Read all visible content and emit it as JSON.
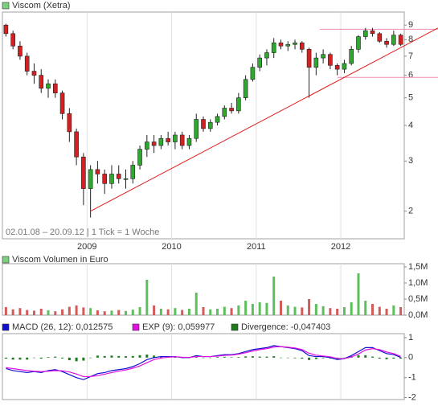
{
  "chart_data": [
    {
      "type": "candlestick",
      "title": "Viscom (Xetra)",
      "legend_color": "#7ccf7c",
      "caption": "02.01.08 – 20.09.12 | 1 Tick = 1 Woche",
      "categories": [
        null,
        null,
        null,
        null,
        null,
        null,
        null,
        null,
        null,
        null,
        null,
        null,
        "2009",
        null,
        null,
        null,
        null,
        null,
        null,
        null,
        null,
        null,
        null,
        null,
        "2010",
        null,
        null,
        null,
        null,
        null,
        null,
        null,
        null,
        null,
        null,
        null,
        "2011",
        null,
        null,
        null,
        null,
        null,
        null,
        null,
        null,
        null,
        null,
        null,
        "2012",
        null,
        null,
        null,
        null,
        null,
        null,
        null,
        null
      ],
      "open": [
        9.0,
        8.4,
        7.6,
        7.0,
        6.2,
        6.0,
        5.4,
        5.6,
        5.2,
        4.4,
        3.8,
        3.1,
        2.4,
        2.8,
        2.7,
        2.5,
        2.7,
        2.6,
        2.6,
        2.9,
        3.3,
        3.5,
        3.4,
        3.6,
        3.5,
        3.7,
        3.4,
        3.6,
        4.2,
        3.9,
        4.1,
        4.3,
        4.6,
        4.5,
        5.0,
        5.8,
        6.4,
        6.9,
        7.2,
        7.8,
        7.6,
        7.7,
        7.8,
        7.4,
        6.4,
        6.9,
        7.1,
        6.5,
        6.3,
        6.6,
        7.4,
        8.2,
        8.6,
        8.4,
        7.9,
        7.7,
        8.3
      ],
      "high": [
        9.1,
        8.6,
        7.9,
        7.2,
        6.6,
        6.3,
        5.8,
        5.8,
        5.3,
        4.6,
        3.9,
        3.2,
        2.9,
        3.0,
        2.8,
        2.9,
        2.9,
        2.8,
        3.0,
        3.4,
        3.7,
        3.7,
        3.7,
        3.8,
        3.8,
        3.8,
        3.7,
        4.4,
        4.3,
        4.2,
        4.4,
        4.7,
        4.8,
        5.2,
        6.0,
        6.6,
        7.1,
        7.4,
        8.1,
        8.0,
        7.9,
        8.0,
        7.9,
        7.5,
        7.2,
        7.4,
        7.2,
        6.6,
        6.8,
        7.6,
        8.3,
        8.8,
        8.8,
        8.5,
        8.1,
        8.6,
        8.4
      ],
      "low": [
        8.2,
        7.4,
        6.8,
        6.0,
        5.6,
        5.2,
        5.0,
        5.0,
        4.2,
        3.5,
        2.9,
        2.1,
        1.9,
        2.5,
        2.3,
        2.4,
        2.5,
        2.4,
        2.5,
        2.8,
        3.1,
        3.2,
        3.3,
        3.4,
        3.3,
        3.3,
        3.3,
        3.5,
        3.8,
        3.8,
        4.0,
        4.2,
        4.4,
        4.4,
        4.9,
        5.7,
        6.2,
        6.5,
        6.9,
        7.4,
        7.3,
        7.4,
        7.2,
        5.0,
        6.0,
        6.6,
        6.3,
        6.0,
        6.1,
        6.5,
        7.2,
        8.0,
        8.2,
        7.8,
        7.5,
        7.6,
        7.6
      ],
      "close": [
        8.4,
        7.6,
        7.0,
        6.2,
        6.0,
        5.4,
        5.6,
        5.2,
        4.4,
        3.8,
        3.1,
        2.4,
        2.8,
        2.7,
        2.5,
        2.7,
        2.6,
        2.6,
        2.9,
        3.3,
        3.5,
        3.4,
        3.6,
        3.5,
        3.7,
        3.4,
        3.6,
        4.2,
        3.9,
        4.1,
        4.3,
        4.6,
        4.5,
        5.0,
        5.8,
        6.4,
        6.9,
        7.2,
        7.8,
        7.6,
        7.7,
        7.8,
        7.4,
        6.4,
        6.9,
        7.1,
        6.5,
        6.3,
        6.6,
        7.4,
        8.2,
        8.6,
        8.4,
        7.9,
        7.7,
        8.3,
        7.7
      ],
      "up_color": "#2ea82e",
      "down_color": "#d42020",
      "ylim": [
        1.6,
        10
      ],
      "yticks": [
        2,
        3,
        4,
        5,
        6,
        7,
        8,
        9
      ],
      "log_scale": true,
      "grid": true,
      "trendline": {
        "color": "#e02020",
        "points": [
          [
            12,
            2.0
          ],
          [
            56,
            7.5
          ]
        ]
      },
      "levels": [
        {
          "value": 8.7,
          "color": "#f08cb4"
        },
        {
          "value": 5.9,
          "color": "#f08cb4"
        }
      ]
    },
    {
      "type": "bar",
      "title": "Viscom Volumen in Euro",
      "legend_color": "#7ccf7c",
      "values": [
        250000,
        180000,
        220000,
        160000,
        140000,
        200000,
        150000,
        120000,
        180000,
        260000,
        300000,
        240000,
        220000,
        150000,
        120000,
        140000,
        160000,
        130000,
        170000,
        250000,
        1100000,
        300000,
        200000,
        180000,
        220000,
        160000,
        200000,
        700000,
        250000,
        180000,
        200000,
        260000,
        220000,
        300000,
        450000,
        350000,
        400000,
        380000,
        1200000,
        450000,
        300000,
        260000,
        240000,
        500000,
        350000,
        280000,
        220000,
        200000,
        250000,
        400000,
        1300000,
        450000,
        350000,
        260000,
        200000,
        300000,
        250000
      ],
      "up_color": "#5cbf5c",
      "down_color": "#d45a5a",
      "ylim": [
        0,
        1600000
      ],
      "yticks": [
        {
          "value": 0,
          "label": "0,0M"
        },
        {
          "value": 500000,
          "label": "0,5M"
        },
        {
          "value": 1000000,
          "label": "1,0M"
        },
        {
          "value": 1500000,
          "label": "1,5M"
        }
      ],
      "grid": true
    },
    {
      "type": "macd",
      "series": [
        {
          "name": "MACD (26, 12): 0,012575",
          "color": "#1010d0",
          "kind": "line",
          "values": [
            -0.55,
            -0.65,
            -0.7,
            -0.75,
            -0.7,
            -0.75,
            -0.65,
            -0.6,
            -0.7,
            -0.85,
            -1.0,
            -1.1,
            -0.95,
            -0.8,
            -0.75,
            -0.65,
            -0.6,
            -0.55,
            -0.45,
            -0.3,
            -0.1,
            0.0,
            0.05,
            0.05,
            0.05,
            0.0,
            0.0,
            0.1,
            0.05,
            0.05,
            0.1,
            0.15,
            0.15,
            0.2,
            0.3,
            0.4,
            0.45,
            0.5,
            0.6,
            0.55,
            0.5,
            0.45,
            0.35,
            0.1,
            0.05,
            0.05,
            0.0,
            -0.1,
            -0.05,
            0.1,
            0.3,
            0.5,
            0.5,
            0.35,
            0.2,
            0.15,
            0.012575
          ]
        },
        {
          "name": "EXP (9): 0,059977",
          "color": "#e010e0",
          "kind": "line",
          "values": [
            -0.5,
            -0.55,
            -0.6,
            -0.65,
            -0.68,
            -0.7,
            -0.68,
            -0.65,
            -0.66,
            -0.72,
            -0.82,
            -0.95,
            -0.95,
            -0.9,
            -0.83,
            -0.75,
            -0.68,
            -0.62,
            -0.53,
            -0.42,
            -0.25,
            -0.1,
            -0.02,
            0.02,
            0.04,
            0.02,
            0.01,
            0.05,
            0.05,
            0.05,
            0.07,
            0.11,
            0.13,
            0.17,
            0.24,
            0.33,
            0.4,
            0.45,
            0.53,
            0.55,
            0.52,
            0.48,
            0.4,
            0.22,
            0.12,
            0.08,
            0.04,
            -0.04,
            -0.05,
            0.03,
            0.18,
            0.38,
            0.45,
            0.4,
            0.28,
            0.2,
            0.059977
          ]
        },
        {
          "name": "Divergence: -0,047403",
          "color": "#1d7a1d",
          "kind": "bar",
          "values": [
            -0.05,
            -0.1,
            -0.1,
            -0.1,
            -0.02,
            -0.05,
            0.03,
            0.05,
            -0.04,
            -0.13,
            -0.18,
            -0.15,
            0.0,
            0.1,
            0.08,
            0.1,
            0.08,
            0.07,
            0.08,
            0.12,
            0.15,
            0.1,
            0.07,
            0.03,
            0.01,
            -0.02,
            -0.01,
            0.05,
            0.0,
            0.0,
            0.03,
            0.04,
            0.02,
            0.03,
            0.06,
            0.07,
            0.05,
            0.05,
            0.07,
            0.0,
            -0.02,
            -0.03,
            -0.05,
            -0.12,
            -0.07,
            -0.03,
            -0.04,
            -0.06,
            0.0,
            0.07,
            0.12,
            0.12,
            0.05,
            -0.05,
            -0.08,
            -0.05,
            -0.047403
          ]
        }
      ],
      "ylim": [
        -2.1,
        1.2
      ],
      "yticks": [
        1,
        0,
        -1,
        -2
      ],
      "grid": true
    }
  ]
}
